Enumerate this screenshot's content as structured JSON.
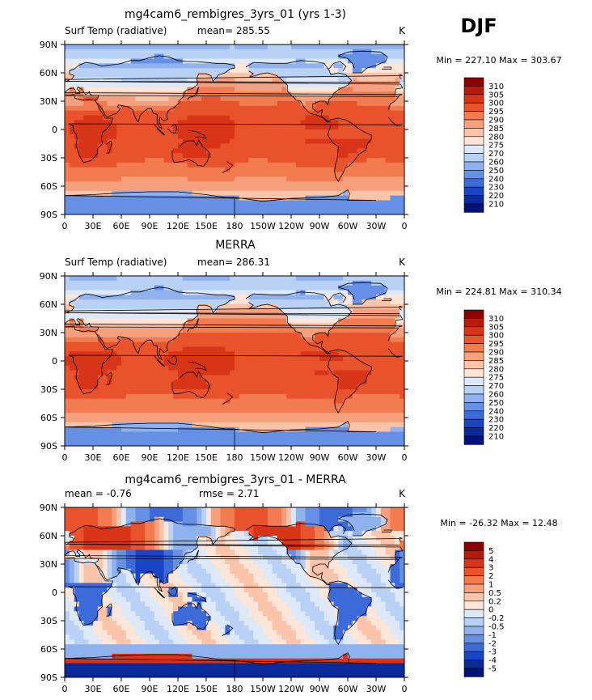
{
  "season": "DJF",
  "axes": {
    "lat_ticks": [
      "90N",
      "60N",
      "30N",
      "0",
      "30S",
      "60S",
      "90S"
    ],
    "lon_ticks": [
      "0",
      "30E",
      "60E",
      "90E",
      "120E",
      "150E",
      "180",
      "150W",
      "120W",
      "90W",
      "60W",
      "30W",
      "0"
    ]
  },
  "chart_data": [
    {
      "type": "heatmap",
      "title": "mg4cam6_rembigres_3yrs_01 (yrs 1-3)",
      "left_label": "Surf Temp (radiative)",
      "mid_label": "mean=  285.55",
      "units": "K",
      "stats": "Min =  227.10  Max =  303.67",
      "levels": [
        "310",
        "305",
        "300",
        "295",
        "290",
        "285",
        "280",
        "275",
        "270",
        "260",
        "250",
        "240",
        "230",
        "220",
        "210"
      ],
      "colors": [
        "#8c0000",
        "#b81a0a",
        "#d83518",
        "#e8532c",
        "#f27c50",
        "#f7a07e",
        "#fbc3a8",
        "#fde5d7",
        "#dde9f8",
        "#b8d1f4",
        "#8fb2ee",
        "#6690e6",
        "#3c6ad8",
        "#1844c4",
        "#0a2a9c",
        "#00127a"
      ],
      "field": "model"
    },
    {
      "type": "heatmap",
      "title": "MERRA",
      "left_label": "Surf Temp (radiative)",
      "mid_label": "mean=  286.31",
      "units": "K",
      "stats": "Min =  224.81  Max =  310.34",
      "levels": [
        "310",
        "305",
        "300",
        "295",
        "290",
        "285",
        "280",
        "275",
        "270",
        "260",
        "250",
        "240",
        "230",
        "220",
        "210"
      ],
      "colors": [
        "#8c0000",
        "#b81a0a",
        "#d83518",
        "#e8532c",
        "#f27c50",
        "#f7a07e",
        "#fbc3a8",
        "#fde5d7",
        "#dde9f8",
        "#b8d1f4",
        "#8fb2ee",
        "#6690e6",
        "#3c6ad8",
        "#1844c4",
        "#0a2a9c",
        "#00127a"
      ],
      "field": "obs"
    },
    {
      "type": "heatmap",
      "title": "mg4cam6_rembigres_3yrs_01 - MERRA",
      "left_label": "mean =   -0.76",
      "mid_label": "rmse =    2.71",
      "units": "K",
      "stats": "Min =  -26.32  Max =   12.48",
      "levels": [
        "5",
        "4",
        "3",
        "2",
        "1",
        "0.5",
        "0.2",
        "0",
        "-0.2",
        "-0.5",
        "-1",
        "-2",
        "-3",
        "-4",
        "-5"
      ],
      "colors": [
        "#8c0000",
        "#b81a0a",
        "#d83518",
        "#e8532c",
        "#f27c50",
        "#f7a07e",
        "#fbc3a8",
        "#fde5d7",
        "#dde9f8",
        "#b8d1f4",
        "#8fb2ee",
        "#6690e6",
        "#3c6ad8",
        "#1844c4",
        "#0a2a9c",
        "#00127a"
      ],
      "field": "diff"
    }
  ]
}
